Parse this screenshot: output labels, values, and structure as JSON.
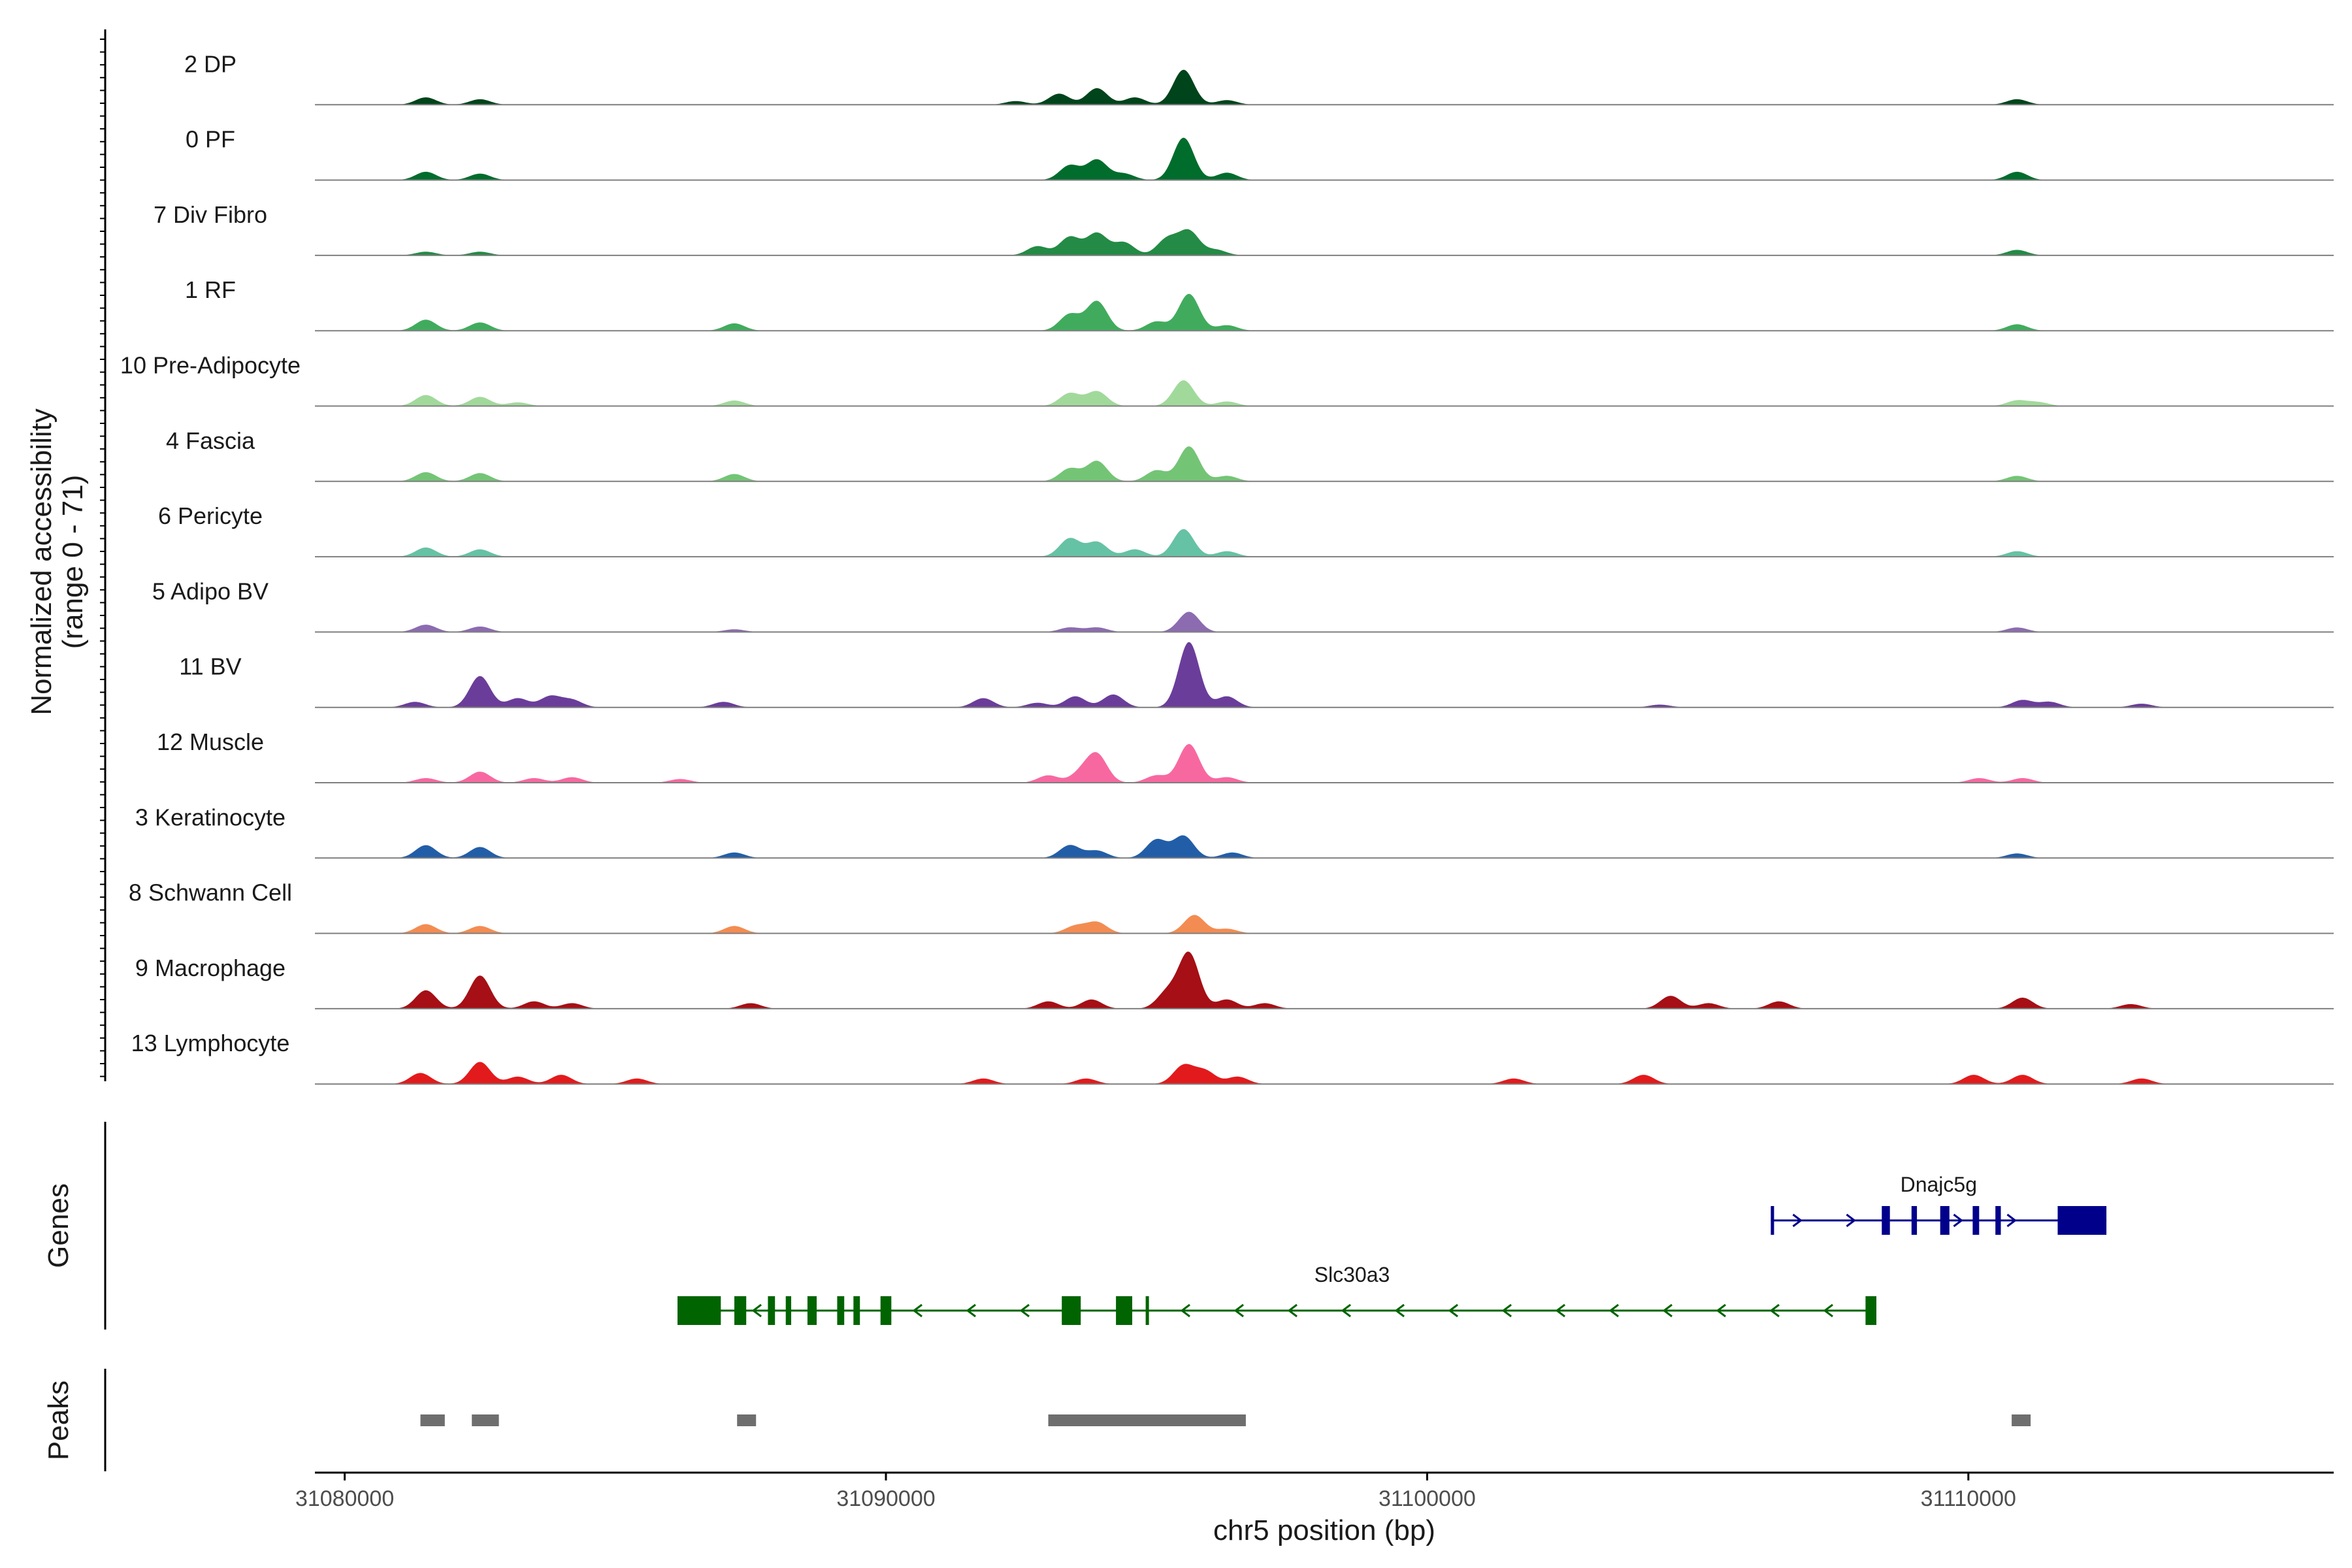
{
  "chart_data": {
    "type": "area",
    "title": "",
    "ylabel_line1": "Normalized accessibility",
    "ylabel_line2": "(range 0 - 71)",
    "y_range": [
      0,
      71
    ],
    "xlabel": "chr5 position (bp)",
    "xlim": [
      31079450,
      31116750
    ],
    "x_ticks": [
      31080000,
      31090000,
      31100000,
      31110000
    ],
    "x_tick_labels": [
      "31080000",
      "31090000",
      "31100000",
      "31110000"
    ],
    "tracks": [
      {
        "name": "2 DP",
        "color": "#00441b",
        "peaks": [
          [
            31081500,
            8
          ],
          [
            31082500,
            6
          ],
          [
            31092400,
            4
          ],
          [
            31093200,
            12
          ],
          [
            31093900,
            18
          ],
          [
            31094600,
            8
          ],
          [
            31095500,
            38
          ],
          [
            31096300,
            5
          ],
          [
            31110900,
            6
          ]
        ]
      },
      {
        "name": "0 PF",
        "color": "#006d2c",
        "peaks": [
          [
            31081500,
            9
          ],
          [
            31082500,
            7
          ],
          [
            31093400,
            16
          ],
          [
            31093900,
            22
          ],
          [
            31094400,
            7
          ],
          [
            31095500,
            46
          ],
          [
            31096300,
            8
          ],
          [
            31110900,
            9
          ]
        ]
      },
      {
        "name": "7 Div Fibro",
        "color": "#238b45",
        "peaks": [
          [
            31081500,
            4
          ],
          [
            31082500,
            4
          ],
          [
            31092800,
            10
          ],
          [
            31093400,
            20
          ],
          [
            31093900,
            24
          ],
          [
            31094400,
            14
          ],
          [
            31095200,
            18
          ],
          [
            31095600,
            26
          ],
          [
            31096100,
            6
          ],
          [
            31110900,
            6
          ]
        ]
      },
      {
        "name": "1 RF",
        "color": "#41ab5d",
        "peaks": [
          [
            31081500,
            12
          ],
          [
            31082500,
            9
          ],
          [
            31087200,
            8
          ],
          [
            31093400,
            18
          ],
          [
            31093900,
            32
          ],
          [
            31095000,
            10
          ],
          [
            31095600,
            40
          ],
          [
            31096300,
            6
          ],
          [
            31110900,
            7
          ]
        ]
      },
      {
        "name": "10 Pre-Adipocyte",
        "color": "#a1d99b",
        "peaks": [
          [
            31081500,
            12
          ],
          [
            31082500,
            10
          ],
          [
            31083200,
            4
          ],
          [
            31087200,
            6
          ],
          [
            31093400,
            14
          ],
          [
            31093900,
            16
          ],
          [
            31095500,
            28
          ],
          [
            31096300,
            5
          ],
          [
            31110900,
            6
          ],
          [
            31111300,
            4
          ]
        ]
      },
      {
        "name": "4 Fascia",
        "color": "#74c476",
        "peaks": [
          [
            31081500,
            10
          ],
          [
            31082500,
            9
          ],
          [
            31087200,
            8
          ],
          [
            31093400,
            14
          ],
          [
            31093900,
            22
          ],
          [
            31095000,
            12
          ],
          [
            31095600,
            38
          ],
          [
            31096300,
            6
          ],
          [
            31110900,
            6
          ]
        ]
      },
      {
        "name": "6 Pericyte",
        "color": "#66c2a4",
        "peaks": [
          [
            31081500,
            10
          ],
          [
            31082500,
            8
          ],
          [
            31093400,
            20
          ],
          [
            31093900,
            16
          ],
          [
            31094600,
            8
          ],
          [
            31095500,
            30
          ],
          [
            31096300,
            6
          ],
          [
            31110900,
            6
          ]
        ]
      },
      {
        "name": "5 Adipo BV",
        "color": "#8c6bb1",
        "peaks": [
          [
            31081500,
            8
          ],
          [
            31082500,
            6
          ],
          [
            31087200,
            3
          ],
          [
            31093400,
            5
          ],
          [
            31093900,
            5
          ],
          [
            31095600,
            22
          ],
          [
            31110900,
            5
          ]
        ]
      },
      {
        "name": "11 BV",
        "color": "#6a3d9a",
        "peaks": [
          [
            31081300,
            6
          ],
          [
            31082500,
            34
          ],
          [
            31083200,
            10
          ],
          [
            31083800,
            12
          ],
          [
            31084200,
            8
          ],
          [
            31087000,
            6
          ],
          [
            31091800,
            10
          ],
          [
            31092800,
            5
          ],
          [
            31093500,
            12
          ],
          [
            31094200,
            14
          ],
          [
            31095600,
            71
          ],
          [
            31096300,
            12
          ],
          [
            31104300,
            3
          ],
          [
            31111000,
            8
          ],
          [
            31111500,
            6
          ],
          [
            31113200,
            4
          ]
        ]
      },
      {
        "name": "12 Muscle",
        "color": "#f768a1",
        "peaks": [
          [
            31081500,
            5
          ],
          [
            31082500,
            12
          ],
          [
            31083500,
            5
          ],
          [
            31084200,
            6
          ],
          [
            31086200,
            4
          ],
          [
            31093000,
            8
          ],
          [
            31093600,
            10
          ],
          [
            31093900,
            30
          ],
          [
            31095000,
            8
          ],
          [
            31095600,
            42
          ],
          [
            31096300,
            6
          ],
          [
            31110200,
            5
          ],
          [
            31111000,
            5
          ]
        ]
      },
      {
        "name": "3 Keratinocyte",
        "color": "#225ea8",
        "peaks": [
          [
            31081500,
            14
          ],
          [
            31082500,
            12
          ],
          [
            31087200,
            6
          ],
          [
            31093400,
            14
          ],
          [
            31093900,
            8
          ],
          [
            31095000,
            20
          ],
          [
            31095500,
            24
          ],
          [
            31096400,
            6
          ],
          [
            31110900,
            5
          ]
        ]
      },
      {
        "name": "8 Schwann Cell",
        "color": "#f38c52",
        "peaks": [
          [
            31081500,
            10
          ],
          [
            31082500,
            8
          ],
          [
            31087200,
            8
          ],
          [
            31093500,
            8
          ],
          [
            31093900,
            12
          ],
          [
            31095700,
            20
          ],
          [
            31096300,
            5
          ]
        ]
      },
      {
        "name": "9 Macrophage",
        "color": "#a50f15",
        "peaks": [
          [
            31081500,
            20
          ],
          [
            31082500,
            36
          ],
          [
            31083500,
            8
          ],
          [
            31084200,
            6
          ],
          [
            31087500,
            6
          ],
          [
            31093000,
            8
          ],
          [
            31093800,
            10
          ],
          [
            31095200,
            18
          ],
          [
            31095600,
            60
          ],
          [
            31096300,
            10
          ],
          [
            31097000,
            6
          ],
          [
            31104500,
            14
          ],
          [
            31105200,
            6
          ],
          [
            31106500,
            8
          ],
          [
            31111000,
            12
          ],
          [
            31113000,
            5
          ]
        ]
      },
      {
        "name": "13 Lymphocyte",
        "color": "#e31a1c",
        "peaks": [
          [
            31081400,
            12
          ],
          [
            31082500,
            24
          ],
          [
            31083200,
            8
          ],
          [
            31084000,
            10
          ],
          [
            31085400,
            6
          ],
          [
            31091800,
            6
          ],
          [
            31093700,
            6
          ],
          [
            31095500,
            20
          ],
          [
            31095900,
            14
          ],
          [
            31096500,
            8
          ],
          [
            31101600,
            6
          ],
          [
            31104000,
            10
          ],
          [
            31110100,
            10
          ],
          [
            31111000,
            10
          ],
          [
            31113200,
            6
          ]
        ]
      }
    ],
    "genes_label": "Genes",
    "genes": [
      {
        "name": "Dnajc5g",
        "strand": "+",
        "color": "#00008b",
        "start": 31106350,
        "end": 31112550,
        "exons": [
          [
            31106350,
            31106380
          ],
          [
            31108400,
            31108550
          ],
          [
            31108950,
            31109050
          ],
          [
            31109480,
            31109650
          ],
          [
            31110080,
            31110200
          ],
          [
            31110500,
            31110600
          ],
          [
            31111650,
            31112550
          ]
        ]
      },
      {
        "name": "Slc30a3",
        "strand": "-",
        "color": "#006400",
        "start": 31086150,
        "end": 31108300,
        "exons": [
          [
            31086150,
            31086950
          ],
          [
            31087200,
            31087420
          ],
          [
            31087820,
            31087950
          ],
          [
            31088150,
            31088250
          ],
          [
            31088550,
            31088720
          ],
          [
            31089100,
            31089230
          ],
          [
            31089400,
            31089520
          ],
          [
            31089900,
            31090100
          ],
          [
            31093250,
            31093600
          ],
          [
            31094250,
            31094550
          ],
          [
            31094800,
            31094840
          ],
          [
            31108100,
            31108300
          ]
        ]
      }
    ],
    "peaks_label": "Peaks",
    "peak_regions": [
      [
        31081400,
        31081850
      ],
      [
        31082350,
        31082850
      ],
      [
        31087250,
        31087600
      ],
      [
        31093000,
        31096650
      ],
      [
        31110800,
        31111150
      ]
    ]
  }
}
